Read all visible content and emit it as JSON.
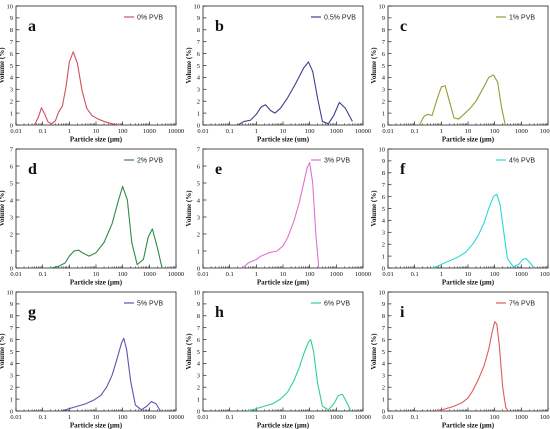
{
  "chart_data": [
    {
      "type": "line",
      "panel_label": "a",
      "xlabel": "Particle size (μm)",
      "ylabel": "Volume (%)",
      "xscale": "log",
      "xlim": [
        0.01,
        10000
      ],
      "ylim": [
        0,
        10
      ],
      "x_ticks": [
        "0.01",
        "0.1",
        "1",
        "10",
        "100",
        "1000",
        "10000"
      ],
      "y_ticks": [
        "0",
        "1",
        "2",
        "3",
        "4",
        "5",
        "6",
        "7",
        "8",
        "9",
        "10"
      ],
      "legend": "top-right",
      "series": [
        {
          "name": "0% PVB",
          "color": "#d1505c",
          "x": [
            0.05,
            0.07,
            0.09,
            0.12,
            0.16,
            0.22,
            0.3,
            0.4,
            0.55,
            0.75,
            1.0,
            1.4,
            2,
            3,
            4.5,
            7,
            12,
            20,
            40,
            80
          ],
          "y": [
            0,
            0.7,
            1.45,
            0.9,
            0.25,
            0.1,
            0.35,
            1.1,
            1.6,
            3.2,
            5.3,
            6.15,
            5.2,
            2.9,
            1.4,
            0.8,
            0.5,
            0.3,
            0.1,
            0
          ]
        }
      ]
    },
    {
      "type": "line",
      "panel_label": "b",
      "xlabel": "Particle size (um)",
      "ylabel": "Volume (%)",
      "xscale": "log",
      "xlim": [
        0.01,
        10000
      ],
      "ylim": [
        0,
        10
      ],
      "x_ticks": [
        "0.01",
        "0.1",
        "1",
        "10",
        "100",
        "1000",
        "10000"
      ],
      "y_ticks": [
        "0",
        "1",
        "2",
        "3",
        "4",
        "5",
        "6",
        "7",
        "8",
        "9",
        "10"
      ],
      "legend": "top-right",
      "series": [
        {
          "name": "0.5% PVB",
          "color": "#3b3f8f",
          "x": [
            0.2,
            0.35,
            0.6,
            1.0,
            1.5,
            2.2,
            3.5,
            5,
            8,
            15,
            30,
            60,
            90,
            130,
            200,
            300,
            500,
            800,
            1300,
            2200,
            4000
          ],
          "y": [
            0,
            0.3,
            0.4,
            0.9,
            1.5,
            1.7,
            1.2,
            1.0,
            1.4,
            2.3,
            3.5,
            4.8,
            5.3,
            4.5,
            2.2,
            0.3,
            0.1,
            0.8,
            1.9,
            1.4,
            0.3
          ]
        }
      ]
    },
    {
      "type": "line",
      "panel_label": "c",
      "xlabel": "Particle size (μm)",
      "ylabel": "Volume (%)",
      "xscale": "log",
      "xlim": [
        0.01,
        10000
      ],
      "ylim": [
        0,
        10
      ],
      "x_ticks": [
        "0.01",
        "0.1",
        "1",
        "10",
        "100",
        "1000",
        "10000"
      ],
      "y_ticks": [
        "0",
        "1",
        "2",
        "3",
        "4",
        "5",
        "6",
        "7",
        "8",
        "9",
        "10"
      ],
      "legend": "top-right",
      "series": [
        {
          "name": "1% PVB",
          "color": "#9a9a33",
          "x": [
            0.15,
            0.22,
            0.3,
            0.45,
            0.7,
            1.0,
            1.4,
            2,
            3,
            4.5,
            7,
            12,
            20,
            35,
            60,
            90,
            130,
            180,
            250
          ],
          "y": [
            0,
            0.7,
            0.9,
            0.8,
            2.2,
            3.2,
            3.3,
            2.0,
            0.6,
            0.5,
            0.9,
            1.4,
            2.0,
            3.0,
            4.0,
            4.2,
            3.6,
            1.5,
            0
          ]
        }
      ]
    },
    {
      "type": "line",
      "panel_label": "d",
      "xlabel": "Particle size (μm)",
      "ylabel": "Volume (%)",
      "xscale": "log",
      "xlim": [
        0.01,
        10000
      ],
      "ylim": [
        0,
        7
      ],
      "x_ticks": [
        "0.01",
        "0.1",
        "1",
        "10",
        "100",
        "1000",
        "10000"
      ],
      "y_ticks": [
        "0",
        "1",
        "2",
        "3",
        "4",
        "5",
        "6",
        "7"
      ],
      "legend": "top-right",
      "series": [
        {
          "name": "2% PVB",
          "color": "#2e8b47",
          "x": [
            0.2,
            0.4,
            0.7,
            1.0,
            1.5,
            2.2,
            3.5,
            5.5,
            10,
            20,
            40,
            70,
            100,
            150,
            220,
            350,
            600,
            900,
            1300,
            2000,
            3000
          ],
          "y": [
            0,
            0.1,
            0.3,
            0.7,
            1.0,
            1.05,
            0.85,
            0.7,
            0.9,
            1.5,
            2.6,
            4.0,
            4.8,
            4.0,
            1.5,
            0.2,
            0.5,
            1.8,
            2.3,
            1.2,
            0
          ]
        }
      ]
    },
    {
      "type": "line",
      "panel_label": "e",
      "xlabel": "Particle size (μm)",
      "ylabel": "Volume (%)",
      "xscale": "log",
      "xlim": [
        0.01,
        10000
      ],
      "ylim": [
        0,
        7
      ],
      "x_ticks": [
        "0.01",
        "0.1",
        "1",
        "10",
        "100",
        "1000",
        "10000"
      ],
      "y_ticks": [
        "0",
        "1",
        "2",
        "3",
        "4",
        "5",
        "6",
        "7"
      ],
      "legend": "top-right",
      "series": [
        {
          "name": "3% PVB",
          "color": "#e070d0",
          "x": [
            0.3,
            0.5,
            1.0,
            1.5,
            3,
            6,
            10,
            15,
            25,
            40,
            60,
            80,
            100,
            130,
            170,
            220
          ],
          "y": [
            0,
            0.3,
            0.5,
            0.7,
            0.9,
            1.0,
            1.3,
            1.8,
            2.7,
            3.8,
            5.0,
            5.9,
            6.2,
            5.0,
            2.0,
            0
          ]
        }
      ]
    },
    {
      "type": "line",
      "panel_label": "f",
      "xlabel": "Particle size (μm)",
      "ylabel": "Volume (%)",
      "xscale": "log",
      "xlim": [
        0.01,
        10000
      ],
      "ylim": [
        0,
        10
      ],
      "x_ticks": [
        "0.01",
        "0.1",
        "1",
        "10",
        "100",
        "1000",
        "10000"
      ],
      "y_ticks": [
        "0",
        "1",
        "2",
        "3",
        "4",
        "5",
        "6",
        "7",
        "8",
        "9",
        "10"
      ],
      "legend": "top-right",
      "series": [
        {
          "name": "4% PVB",
          "color": "#2ad9d4",
          "x": [
            0.5,
            1.0,
            2,
            4,
            8,
            15,
            25,
            40,
            60,
            90,
            120,
            160,
            220,
            300,
            500,
            800,
            1100,
            1500,
            2200,
            3000
          ],
          "y": [
            0,
            0.3,
            0.6,
            0.9,
            1.3,
            2.0,
            2.8,
            3.8,
            5.0,
            6.0,
            6.2,
            5.3,
            3.0,
            0.8,
            0.1,
            0.3,
            0.7,
            0.8,
            0.4,
            0
          ]
        }
      ]
    },
    {
      "type": "line",
      "panel_label": "g",
      "xlabel": "Particle size (μm)",
      "ylabel": "Volume (%)",
      "xscale": "log",
      "xlim": [
        0.01,
        10000
      ],
      "ylim": [
        0,
        10
      ],
      "x_ticks": [
        "0.01",
        "0.1",
        "1",
        "10",
        "100",
        "1000",
        "10000"
      ],
      "y_ticks": [
        "0",
        "1",
        "2",
        "3",
        "4",
        "5",
        "6",
        "7",
        "8",
        "9",
        "10"
      ],
      "legend": "top-right",
      "series": [
        {
          "name": "5% PVB",
          "color": "#5a55b0",
          "x": [
            0.5,
            1.0,
            2,
            4,
            8,
            15,
            25,
            40,
            60,
            90,
            110,
            140,
            200,
            300,
            500,
            800,
            1200,
            1800,
            2600
          ],
          "y": [
            0,
            0.2,
            0.4,
            0.6,
            0.9,
            1.3,
            2.0,
            3.0,
            4.3,
            5.7,
            6.1,
            5.2,
            2.5,
            0.5,
            0.1,
            0.4,
            0.8,
            0.6,
            0
          ]
        }
      ]
    },
    {
      "type": "line",
      "panel_label": "h",
      "xlabel": "Particle size (μm)",
      "ylabel": "Volume (%)",
      "xscale": "log",
      "xlim": [
        0.01,
        10000
      ],
      "ylim": [
        0,
        10
      ],
      "x_ticks": [
        "0.01",
        "0.1",
        "1",
        "10",
        "100",
        "1000",
        "10000"
      ],
      "y_ticks": [
        "0",
        "1",
        "2",
        "3",
        "4",
        "5",
        "6",
        "7",
        "8",
        "9",
        "10"
      ],
      "legend": "top-right",
      "series": [
        {
          "name": "6% PVB",
          "color": "#33d18a",
          "x": [
            0.5,
            1.0,
            2,
            4,
            8,
            15,
            25,
            40,
            60,
            90,
            110,
            140,
            200,
            300,
            500,
            800,
            1200,
            1700,
            2500,
            3500
          ],
          "y": [
            0,
            0.2,
            0.4,
            0.6,
            1.0,
            1.6,
            2.5,
            3.6,
            4.8,
            5.8,
            6.0,
            5.0,
            2.3,
            0.4,
            0.1,
            0.6,
            1.3,
            1.4,
            0.7,
            0
          ]
        }
      ]
    },
    {
      "type": "line",
      "panel_label": "i",
      "xlabel": "Particle size (μm)",
      "ylabel": "Volume (%)",
      "xscale": "log",
      "xlim": [
        0.01,
        10000
      ],
      "ylim": [
        0,
        10
      ],
      "x_ticks": [
        "0.01",
        "0.1",
        "1",
        "10",
        "100",
        "1000",
        "10000"
      ],
      "y_ticks": [
        "0",
        "1",
        "2",
        "3",
        "4",
        "5",
        "6",
        "7",
        "8",
        "9",
        "10"
      ],
      "legend": "top-right",
      "series": [
        {
          "name": "7% PVB",
          "color": "#e05a5a",
          "x": [
            0.7,
            1.5,
            3,
            6,
            10,
            15,
            25,
            40,
            60,
            80,
            100,
            120,
            150,
            200,
            260,
            320
          ],
          "y": [
            0,
            0.2,
            0.4,
            0.7,
            1.1,
            1.7,
            2.7,
            3.8,
            5.2,
            6.6,
            7.5,
            7.3,
            5.5,
            2.0,
            0.3,
            0
          ]
        }
      ]
    }
  ]
}
